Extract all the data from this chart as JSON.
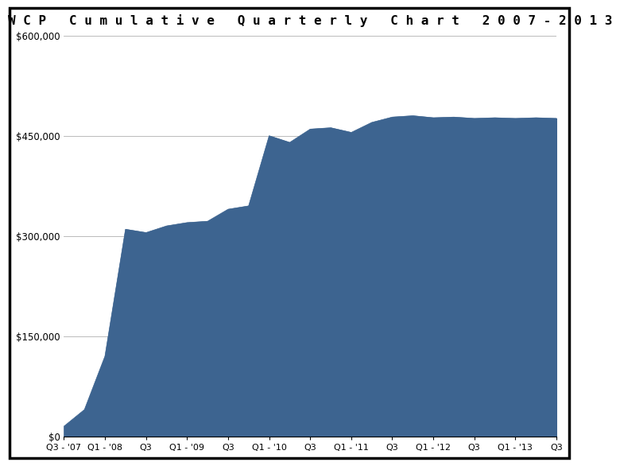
{
  "title": "W C P   C u m u l a t i v e   Q u a r t e r l y   C h a r t   2 0 0 7 - 2 0 1 3",
  "background_color": "#ffffff",
  "fill_color": "#3d6490",
  "line_color": "#3d6490",
  "border_color": "#000000",
  "grid_color": "#b0b0b0",
  "x_labels": [
    "Q3 - '07",
    "Q1 - '08",
    "Q3",
    "Q1 - '09",
    "Q3",
    "Q1 - '10",
    "Q3",
    "Q1 - '11",
    "Q3",
    "Q1 - '12",
    "Q3",
    "Q1 - '13",
    "Q3"
  ],
  "x_positions": [
    0,
    2,
    4,
    6,
    8,
    10,
    12,
    14,
    16,
    18,
    20,
    22,
    24
  ],
  "y_values": [
    15000,
    40000,
    120000,
    310000,
    305000,
    315000,
    320000,
    322000,
    340000,
    345000,
    450000,
    440000,
    460000,
    462000,
    455000,
    470000,
    478000,
    480000,
    477000,
    478000,
    476000,
    477000,
    476000,
    477000,
    476000
  ],
  "x_data": [
    0,
    1,
    2,
    3,
    4,
    5,
    6,
    7,
    8,
    9,
    10,
    11,
    12,
    13,
    14,
    15,
    16,
    17,
    18,
    19,
    20,
    21,
    22,
    23,
    24
  ],
  "ylim": [
    0,
    600000
  ],
  "xlim": [
    0,
    24
  ],
  "yticks": [
    0,
    150000,
    300000,
    450000,
    600000
  ],
  "ytick_labels": [
    "$0",
    "$150,000",
    "$300,000",
    "$450,000",
    "$600,000"
  ],
  "title_fontsize": 11.5,
  "tick_fontsize": 8.5
}
